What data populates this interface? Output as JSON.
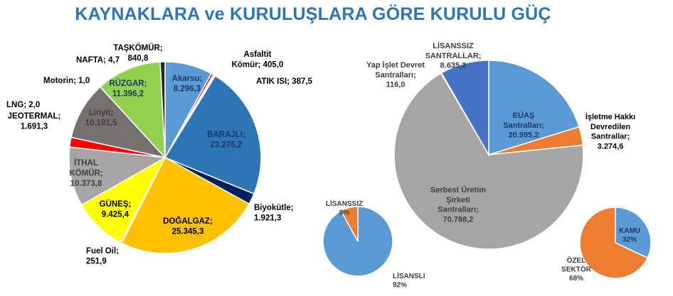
{
  "title": "KAYNAKLARA ve KURULUŞLARA GÖRE KURULU GÜÇ",
  "chart_data": [
    {
      "type": "pie",
      "id": "sources",
      "slices": [
        {
          "label_lines": [
            "Akarsu;",
            "8.296,3"
          ],
          "value": 8296.3,
          "color": "#5B9BD5",
          "text_color": "#1F3864"
        },
        {
          "label_lines": [
            "Asfaltit",
            "Kömür; 405,0"
          ],
          "value": 405.0,
          "color": "#FF0000",
          "text_color": "#000000"
        },
        {
          "label_lines": [
            "ATIK ISI; 387,5"
          ],
          "value": 387.5,
          "color": "#FFFFFF",
          "text_color": "#000000"
        },
        {
          "label_lines": [
            "BARAJLI;",
            "23.275,2"
          ],
          "value": 23275.2,
          "color": "#2E75B6",
          "text_color": "#1F3864"
        },
        {
          "label_lines": [
            "Biyokütle;",
            "1.921,3"
          ],
          "value": 1921.3,
          "color": "#002060",
          "text_color": "#000000"
        },
        {
          "label_lines": [
            "DOĞALGAZ;",
            "25.345,3"
          ],
          "value": 25345.3,
          "color": "#FFC000",
          "text_color": "#000000"
        },
        {
          "label_lines": [
            "Fuel Oil;",
            "251,9"
          ],
          "value": 251.9,
          "color": "#7F6000",
          "text_color": "#000000"
        },
        {
          "label_lines": [
            "GÜNEŞ;",
            "9.425,4"
          ],
          "value": 9425.4,
          "color": "#FFFF00",
          "text_color": "#000000"
        },
        {
          "label_lines": [
            "İTHAL",
            "KÖMÜR;",
            "10.373,8"
          ],
          "value": 10373.8,
          "color": "#A5A5A5",
          "text_color": "#404040"
        },
        {
          "label_lines": [
            "JEOTERMAL;",
            "1.691,3"
          ],
          "value": 1691.3,
          "color": "#FF0000",
          "text_color": "#000000"
        },
        {
          "label_lines": [
            "Linyit;",
            "10.191,5"
          ],
          "value": 10191.5,
          "color": "#767171",
          "text_color": "#404040"
        },
        {
          "label_lines": [
            "LNG; 2,0"
          ],
          "value": 2.0,
          "color": "#FFFFFF",
          "text_color": "#000000"
        },
        {
          "label_lines": [
            "Motorin; 1,0"
          ],
          "value": 1.0,
          "color": "#FFFFFF",
          "text_color": "#000000"
        },
        {
          "label_lines": [
            "NAFTA; 4,7"
          ],
          "value": 4.7,
          "color": "#FFFFFF",
          "text_color": "#000000"
        },
        {
          "label_lines": [
            "RÜZGAR;",
            "11.396,2"
          ],
          "value": 11396.2,
          "color": "#92D050",
          "text_color": "#1F3864"
        },
        {
          "label_lines": [
            "TAŞKÖMÜR;",
            "840,8"
          ],
          "value": 840.8,
          "color": "#262626",
          "text_color": "#000000"
        }
      ]
    },
    {
      "type": "pie",
      "id": "organizations",
      "slices": [
        {
          "label_lines": [
            "EÜAŞ",
            "Santralları;",
            "20.995,2"
          ],
          "value": 20995.2,
          "color": "#5B9BD5",
          "text_color": "#1F3864"
        },
        {
          "label_lines": [
            "İşletme Hakkı",
            "Devredilen",
            "Santrallar;",
            "3.274,6"
          ],
          "value": 3274.6,
          "color": "#ED7D31",
          "text_color": "#000000"
        },
        {
          "label_lines": [
            "Serbest Üretim",
            "Şirketi",
            "Santralları;",
            "70.788,2"
          ],
          "value": 70788.2,
          "color": "#A5A5A5",
          "text_color": "#404040"
        },
        {
          "label_lines": [
            "Yap İşlet Devret",
            "Santralları;",
            "116,0"
          ],
          "value": 116.0,
          "color": "#FFFFFF",
          "text_color": "#404040"
        },
        {
          "label_lines": [
            "LİSANSSIZ",
            "SANTRALLAR;",
            "8.635,2"
          ],
          "value": 8635.2,
          "color": "#4472C4",
          "text_color": "#404040"
        }
      ]
    },
    {
      "type": "pie",
      "id": "license",
      "slices": [
        {
          "label_lines": [
            "LİSANSLI",
            "92%"
          ],
          "value": 92,
          "color": "#5B9BD5",
          "text_color": "#404040"
        },
        {
          "label_lines": [
            "LİSANSSIZ",
            "8%"
          ],
          "value": 8,
          "color": "#ED7D31",
          "text_color": "#404040"
        }
      ]
    },
    {
      "type": "pie",
      "id": "ownership",
      "slices": [
        {
          "label_lines": [
            "KAMU",
            "32%"
          ],
          "value": 32,
          "color": "#5B9BD5",
          "text_color": "#1F3864"
        },
        {
          "label_lines": [
            "ÖZEL",
            "SEKTÖR",
            "68%"
          ],
          "value": 68,
          "color": "#ED7D31",
          "text_color": "#404040"
        }
      ]
    }
  ]
}
